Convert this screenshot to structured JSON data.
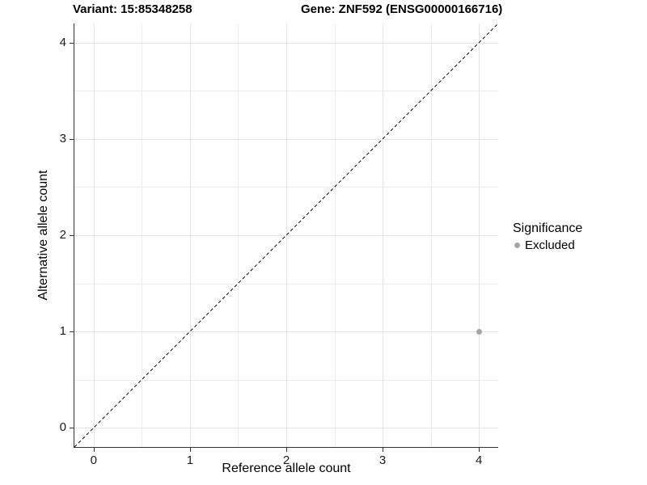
{
  "figure": {
    "title_left": "Variant: 15:85348258",
    "title_right": "Gene: ZNF592 (ENSG00000166716)"
  },
  "axes": {
    "x_label": "Reference allele count",
    "y_label": "Alternative allele count"
  },
  "legend": {
    "title": "Significance",
    "items": [
      {
        "label": "Excluded",
        "color": "#a5a5a5"
      }
    ]
  },
  "chart_data": {
    "type": "scatter",
    "title": "Variant: 15:85348258 | Gene: ZNF592 (ENSG00000166716)",
    "xlabel": "Reference allele count",
    "ylabel": "Alternative allele count",
    "xlim": [
      -0.2,
      4.2
    ],
    "ylim": [
      -0.2,
      4.2
    ],
    "x_ticks": [
      0,
      1,
      2,
      3,
      4
    ],
    "y_ticks": [
      0,
      1,
      2,
      3,
      4
    ],
    "grid_major": [
      0,
      1,
      2,
      3,
      4
    ],
    "grid_minor": [
      0.5,
      1.5,
      2.5,
      3.5
    ],
    "grid_on": true,
    "legend_position": "right",
    "series": [
      {
        "name": "Excluded",
        "color": "#a5a5a5",
        "points": [
          {
            "x": 4,
            "y": 1
          }
        ]
      }
    ],
    "identity_line": {
      "style": "dashed",
      "x1": -0.2,
      "y1": -0.2,
      "x2": 4.2,
      "y2": 4.2
    }
  },
  "colors": {
    "grid_major": "#e3e3e3",
    "grid_minor": "#ececec",
    "axis_line": "#333333",
    "tick_mark": "#333333",
    "dashed_line": "#000000",
    "point": "#a5a5a5"
  }
}
